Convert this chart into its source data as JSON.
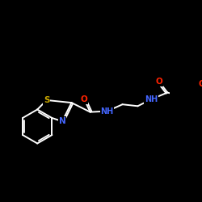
{
  "background_color": "#000000",
  "bond_color": "#ffffff",
  "N_color": "#4466ff",
  "O_color": "#ff2200",
  "S_color": "#ccaa00",
  "figsize": [
    2.5,
    2.5
  ],
  "dpi": 100,
  "lw": 1.4,
  "fs": 7.0,
  "xlim": [
    0,
    10
  ],
  "ylim": [
    0,
    10
  ]
}
